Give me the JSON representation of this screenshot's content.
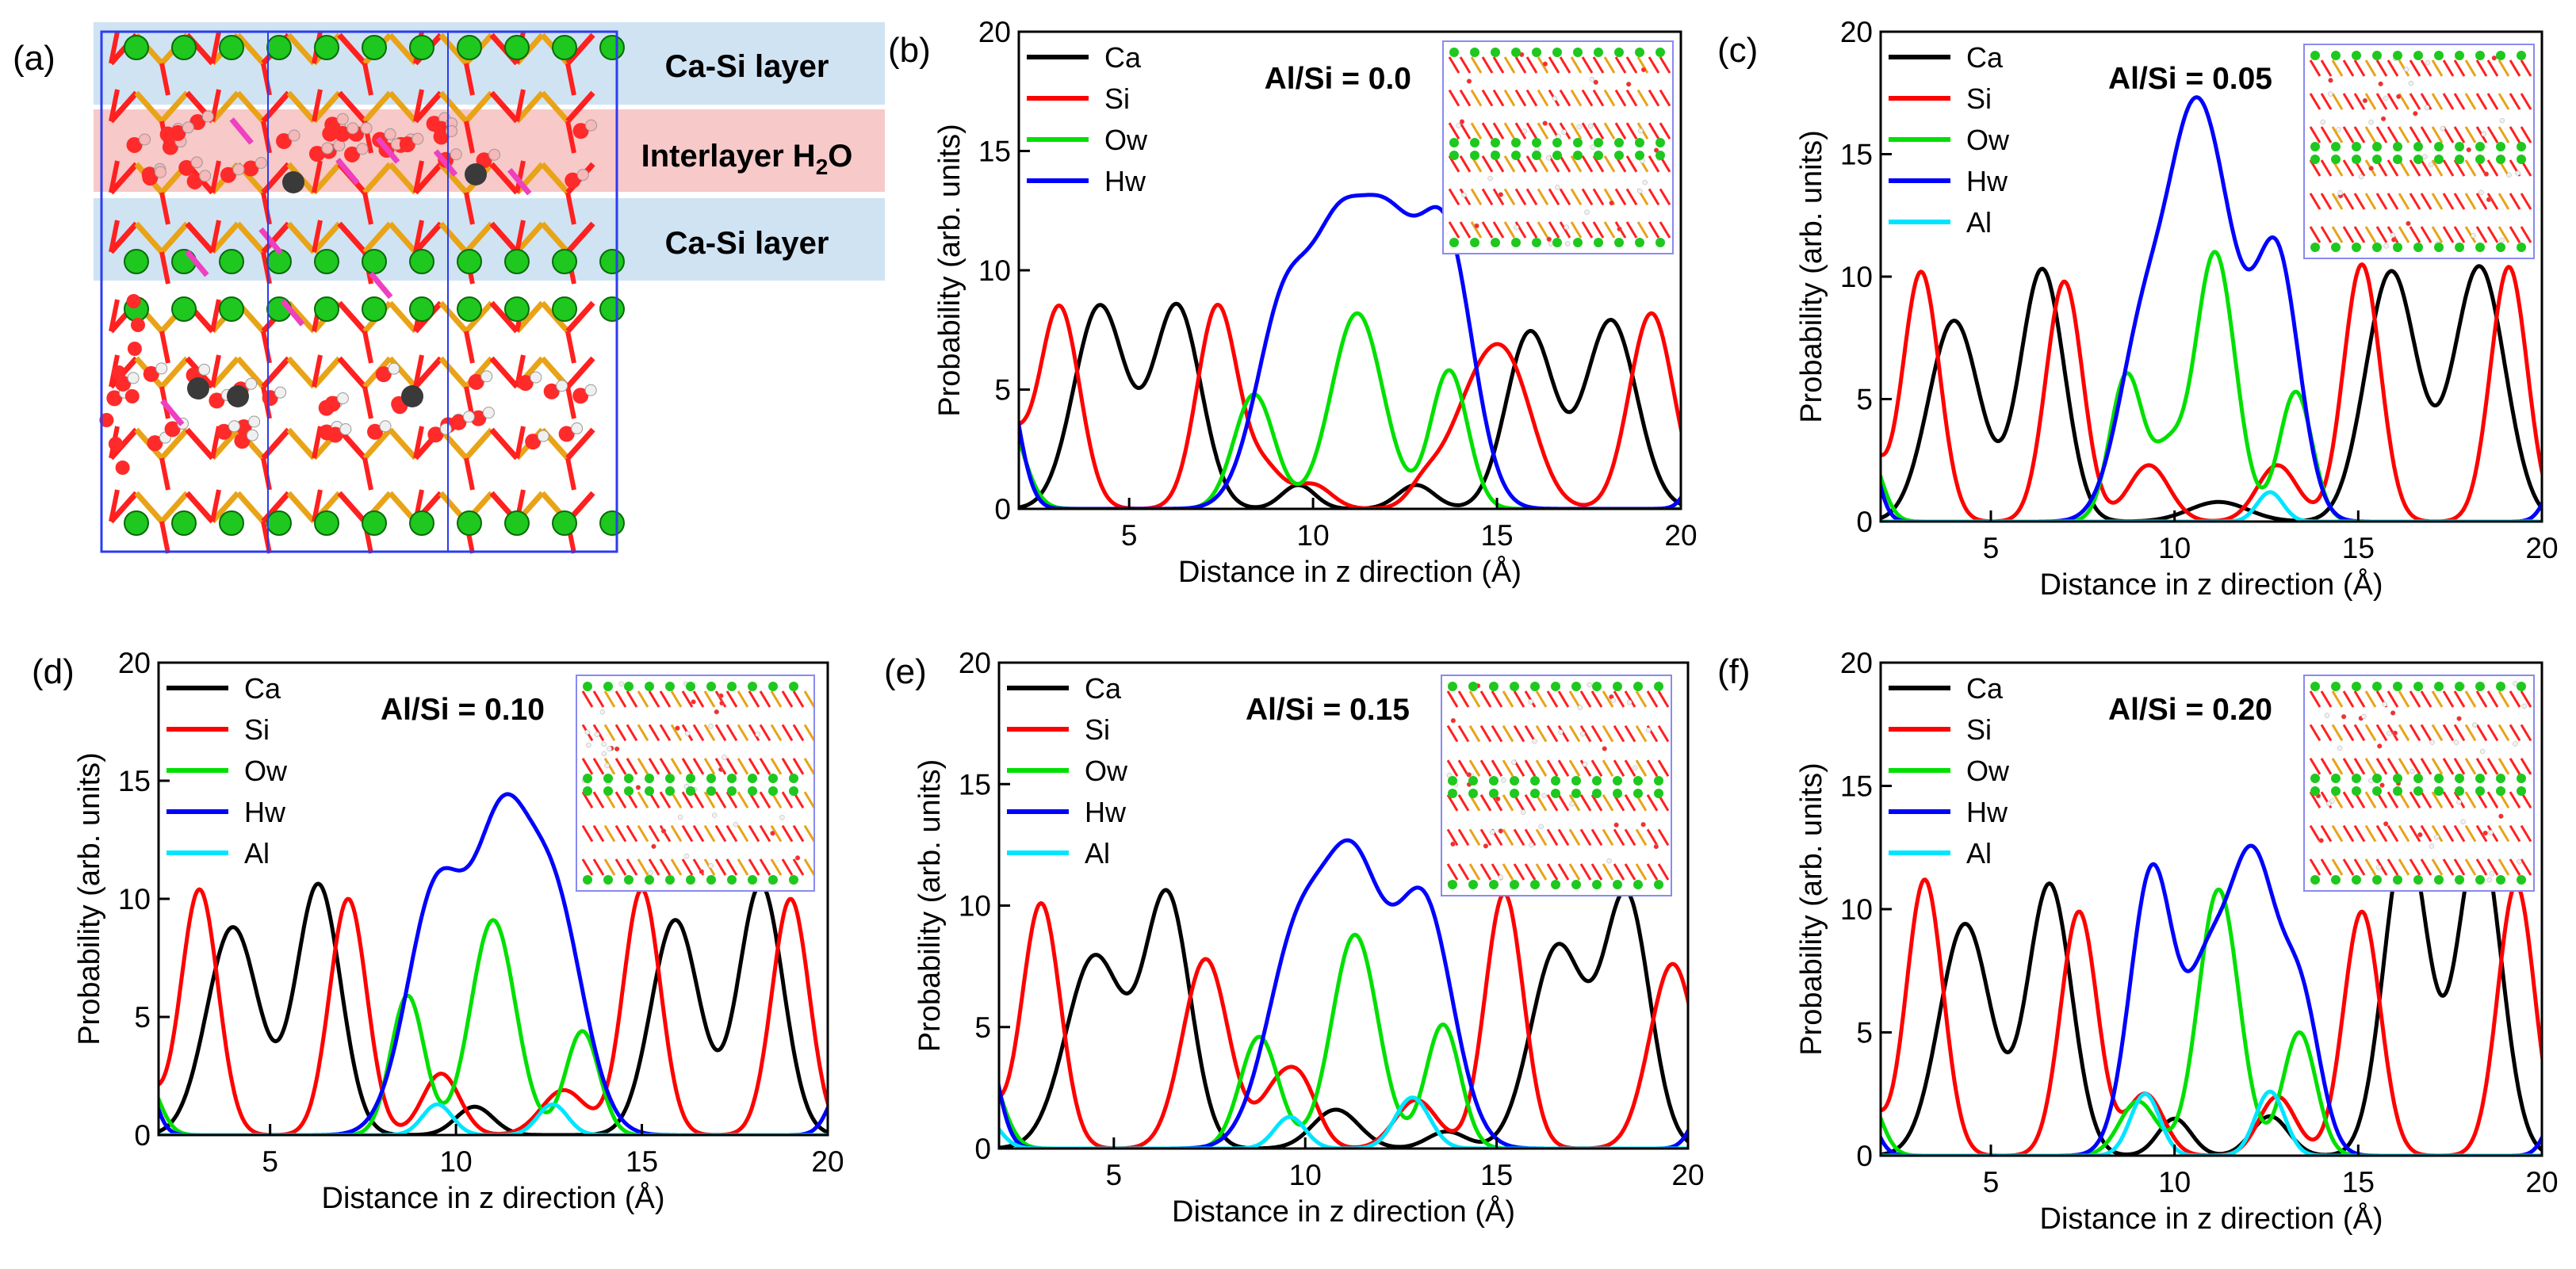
{
  "figure": {
    "panel_a": {
      "letter": "(a)",
      "band_top": "Ca-Si layer",
      "band_mid_main": "Interlayer H",
      "band_mid_sub": "2",
      "band_mid_tail": "O",
      "band_bottom": "Ca-Si layer"
    },
    "colors": {
      "Ca": "#000000",
      "Si": "#ff0000",
      "Ow": "#00e000",
      "Hw": "#0000ff",
      "Al": "#00e5ff",
      "band_blue": "#cfe3f3",
      "band_red": "#f7c9c9"
    }
  },
  "chart_data": [
    {
      "type": "line",
      "letter": "(b)",
      "annotation": "Al/Si = 0.0",
      "xlabel": "Distance in z direction (Å)",
      "ylabel": "Probability (arb. units)",
      "xlim": [
        2,
        20
      ],
      "ylim": [
        0,
        20
      ],
      "xticks": [
        5,
        10,
        15,
        20
      ],
      "yticks": [
        0,
        5,
        10,
        15,
        20
      ],
      "legend": [
        "Ca",
        "Si",
        "Ow",
        "Hw"
      ],
      "series": [
        {
          "name": "Ca",
          "peaks": [
            [
              4.2,
              8.5,
              0.7
            ],
            [
              6.3,
              8.5,
              0.65
            ],
            [
              9.6,
              1.0,
              0.45
            ],
            [
              12.8,
              1.0,
              0.5
            ],
            [
              15.9,
              7.4,
              0.65
            ],
            [
              18.1,
              7.9,
              0.7
            ]
          ]
        },
        {
          "name": "Si",
          "peaks": [
            [
              1.7,
              3.0,
              0.45
            ],
            [
              3.1,
              8.5,
              0.55
            ],
            [
              7.4,
              8.5,
              0.55
            ],
            [
              8.7,
              1.6,
              0.5
            ],
            [
              10.0,
              1.0,
              0.5
            ],
            [
              13.0,
              0.7,
              0.4
            ],
            [
              14.4,
              4.2,
              0.8
            ],
            [
              15.4,
              4.4,
              0.7
            ],
            [
              19.2,
              8.2,
              0.6
            ]
          ]
        },
        {
          "name": "Ow",
          "peaks": [
            [
              1.6,
              4.0,
              0.5
            ],
            [
              8.4,
              4.8,
              0.55
            ],
            [
              11.2,
              8.2,
              0.7
            ],
            [
              13.7,
              5.8,
              0.5
            ]
          ]
        },
        {
          "name": "Hw",
          "peaks": [
            [
              1.5,
              6.5,
              0.45
            ],
            [
              9.3,
              9.0,
              0.8
            ],
            [
              10.6,
              5.0,
              0.6
            ],
            [
              11.9,
              12.2,
              1.0
            ],
            [
              13.7,
              9.5,
              0.7
            ],
            [
              20.6,
              2.0,
              0.35
            ]
          ]
        }
      ]
    },
    {
      "type": "line",
      "letter": "(c)",
      "annotation": "Al/Si = 0.05",
      "xlabel": "Distance in z direction (Å)",
      "ylabel": "Probability (arb. units)",
      "xlim": [
        2,
        20
      ],
      "ylim": [
        0,
        20
      ],
      "xticks": [
        5,
        10,
        15,
        20
      ],
      "yticks": [
        0,
        5,
        10,
        15,
        20
      ],
      "legend": [
        "Ca",
        "Si",
        "Ow",
        "Hw",
        "Al"
      ],
      "series": [
        {
          "name": "Ca",
          "peaks": [
            [
              4.0,
              8.2,
              0.7
            ],
            [
              6.4,
              10.3,
              0.6
            ],
            [
              11.2,
              0.8,
              0.8
            ],
            [
              15.9,
              10.2,
              0.7
            ],
            [
              18.3,
              10.4,
              0.7
            ]
          ]
        },
        {
          "name": "Si",
          "peaks": [
            [
              1.6,
              3.0,
              0.4
            ],
            [
              3.1,
              10.2,
              0.5
            ],
            [
              7.0,
              9.8,
              0.5
            ],
            [
              9.3,
              2.3,
              0.55
            ],
            [
              12.8,
              2.3,
              0.55
            ],
            [
              15.1,
              10.5,
              0.5
            ],
            [
              19.1,
              10.4,
              0.5
            ]
          ]
        },
        {
          "name": "Ow",
          "peaks": [
            [
              1.6,
              3.0,
              0.4
            ],
            [
              8.7,
              6.0,
              0.45
            ],
            [
              9.8,
              2.5,
              0.4
            ],
            [
              11.1,
              11.0,
              0.55
            ],
            [
              13.3,
              5.3,
              0.45
            ]
          ]
        },
        {
          "name": "Hw",
          "peaks": [
            [
              1.5,
              4.0,
              0.35
            ],
            [
              9.2,
              8.0,
              0.7
            ],
            [
              10.3,
              7.5,
              0.6
            ],
            [
              11.1,
              12.0,
              0.75
            ],
            [
              12.8,
              10.5,
              0.6
            ],
            [
              20.5,
              2.0,
              0.35
            ]
          ]
        },
        {
          "name": "Al",
          "peaks": [
            [
              12.6,
              1.2,
              0.35
            ]
          ]
        }
      ]
    },
    {
      "type": "line",
      "letter": "(d)",
      "annotation": "Al/Si = 0.10",
      "xlabel": "Distance in z direction (Å)",
      "ylabel": "Probability (arb. units)",
      "xlim": [
        2,
        20
      ],
      "ylim": [
        0,
        20
      ],
      "xticks": [
        5,
        10,
        15,
        20
      ],
      "yticks": [
        0,
        5,
        10,
        15,
        20
      ],
      "legend": [
        "Ca",
        "Si",
        "Ow",
        "Hw",
        "Al"
      ],
      "series": [
        {
          "name": "Ca",
          "peaks": [
            [
              4.0,
              8.8,
              0.7
            ],
            [
              6.3,
              10.6,
              0.6
            ],
            [
              10.5,
              1.2,
              0.5
            ],
            [
              15.9,
              9.1,
              0.65
            ],
            [
              18.2,
              10.6,
              0.6
            ]
          ]
        },
        {
          "name": "Si",
          "peaks": [
            [
              1.6,
              2.0,
              0.4
            ],
            [
              3.1,
              10.4,
              0.5
            ],
            [
              7.1,
              10.0,
              0.5
            ],
            [
              9.6,
              2.6,
              0.5
            ],
            [
              12.9,
              1.9,
              0.6
            ],
            [
              15.0,
              10.4,
              0.5
            ],
            [
              19.0,
              10.0,
              0.5
            ]
          ]
        },
        {
          "name": "Ow",
          "peaks": [
            [
              1.6,
              2.5,
              0.4
            ],
            [
              8.7,
              5.9,
              0.45
            ],
            [
              11.0,
              9.1,
              0.6
            ],
            [
              13.4,
              4.4,
              0.45
            ]
          ]
        },
        {
          "name": "Hw",
          "peaks": [
            [
              1.5,
              3.0,
              0.35
            ],
            [
              9.5,
              10.5,
              0.8
            ],
            [
              11.2,
              11.0,
              0.7
            ],
            [
              12.6,
              10.0,
              0.8
            ],
            [
              20.5,
              2.5,
              0.4
            ]
          ]
        },
        {
          "name": "Al",
          "peaks": [
            [
              9.5,
              1.3,
              0.4
            ],
            [
              12.6,
              1.3,
              0.4
            ]
          ]
        }
      ]
    },
    {
      "type": "line",
      "letter": "(e)",
      "annotation": "Al/Si = 0.15",
      "xlabel": "Distance in z direction (Å)",
      "ylabel": "Probability (arb. units)",
      "xlim": [
        2,
        20
      ],
      "ylim": [
        0,
        20
      ],
      "xticks": [
        5,
        10,
        15,
        20
      ],
      "yticks": [
        0,
        5,
        10,
        15,
        20
      ],
      "legend": [
        "Ca",
        "Si",
        "Ow",
        "Hw",
        "Al"
      ],
      "series": [
        {
          "name": "Ca",
          "peaks": [
            [
              4.5,
              7.9,
              0.75
            ],
            [
              6.4,
              10.3,
              0.6
            ],
            [
              10.8,
              1.6,
              0.6
            ],
            [
              13.7,
              0.7,
              0.5
            ],
            [
              16.6,
              8.3,
              0.7
            ],
            [
              18.4,
              10.3,
              0.6
            ]
          ]
        },
        {
          "name": "Si",
          "peaks": [
            [
              1.6,
              2.0,
              0.4
            ],
            [
              3.1,
              10.1,
              0.5
            ],
            [
              7.4,
              7.8,
              0.6
            ],
            [
              9.2,
              2.0,
              0.45
            ],
            [
              9.9,
              2.5,
              0.45
            ],
            [
              12.9,
              2.0,
              0.55
            ],
            [
              15.2,
              10.5,
              0.5
            ],
            [
              19.6,
              7.6,
              0.6
            ]
          ]
        },
        {
          "name": "Ow",
          "peaks": [
            [
              1.6,
              3.5,
              0.45
            ],
            [
              8.8,
              4.6,
              0.5
            ],
            [
              11.3,
              8.8,
              0.6
            ],
            [
              13.6,
              5.1,
              0.45
            ]
          ]
        },
        {
          "name": "Hw",
          "peaks": [
            [
              1.5,
              5.5,
              0.4
            ],
            [
              9.8,
              8.5,
              0.8
            ],
            [
              11.3,
              10.5,
              0.75
            ],
            [
              13.1,
              10.0,
              0.75
            ],
            [
              20.5,
              2.0,
              0.35
            ]
          ]
        },
        {
          "name": "Al",
          "peaks": [
            [
              1.6,
              1.3,
              0.4
            ],
            [
              9.6,
              1.3,
              0.4
            ],
            [
              12.8,
              2.1,
              0.45
            ]
          ]
        }
      ]
    },
    {
      "type": "line",
      "letter": "(f)",
      "annotation": "Al/Si = 0.20",
      "xlabel": "Distance in z direction (Å)",
      "ylabel": "Probability (arb. units)",
      "xlim": [
        2,
        20
      ],
      "ylim": [
        0,
        20
      ],
      "xticks": [
        5,
        10,
        15,
        20
      ],
      "yticks": [
        0,
        5,
        10,
        15,
        20
      ],
      "legend": [
        "Ca",
        "Si",
        "Ow",
        "Hw",
        "Al"
      ],
      "series": [
        {
          "name": "Ca",
          "peaks": [
            [
              4.3,
              9.4,
              0.7
            ],
            [
              6.6,
              11.0,
              0.6
            ],
            [
              10.0,
              1.5,
              0.45
            ],
            [
              12.6,
              1.6,
              0.5
            ],
            [
              16.3,
              13.0,
              0.6
            ],
            [
              18.3,
              13.0,
              0.6
            ]
          ]
        },
        {
          "name": "Si",
          "peaks": [
            [
              1.6,
              2.0,
              0.4
            ],
            [
              3.2,
              11.2,
              0.5
            ],
            [
              7.4,
              9.9,
              0.5
            ],
            [
              9.2,
              2.5,
              0.5
            ],
            [
              12.8,
              2.4,
              0.5
            ],
            [
              15.1,
              9.9,
              0.5
            ],
            [
              19.3,
              11.0,
              0.5
            ]
          ]
        },
        {
          "name": "Ow",
          "peaks": [
            [
              1.6,
              2.5,
              0.4
            ],
            [
              9.0,
              2.2,
              0.5
            ],
            [
              11.2,
              10.8,
              0.55
            ],
            [
              13.4,
              5.0,
              0.45
            ]
          ]
        },
        {
          "name": "Hw",
          "peaks": [
            [
              1.5,
              2.0,
              0.35
            ],
            [
              9.4,
              11.7,
              0.6
            ],
            [
              10.8,
              5.0,
              0.5
            ],
            [
              12.1,
              12.3,
              0.75
            ],
            [
              13.5,
              5.0,
              0.5
            ],
            [
              20.5,
              2.0,
              0.35
            ]
          ]
        },
        {
          "name": "Al",
          "peaks": [
            [
              9.2,
              2.5,
              0.4
            ],
            [
              12.6,
              2.6,
              0.4
            ]
          ]
        }
      ]
    }
  ]
}
